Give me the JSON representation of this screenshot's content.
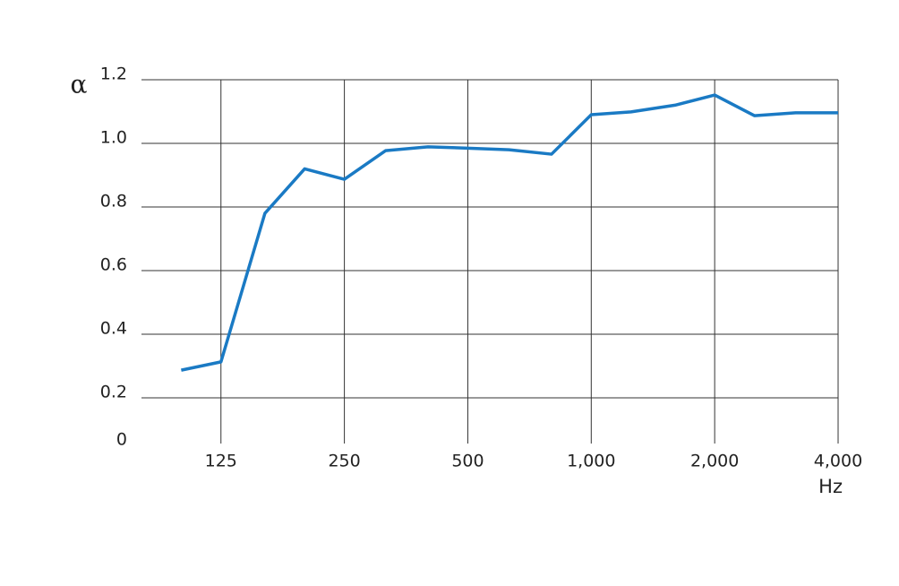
{
  "chart_data": {
    "type": "line",
    "ylabel": "α",
    "xlabel": "Hz",
    "x": [
      100,
      125,
      160,
      200,
      250,
      315,
      400,
      500,
      630,
      800,
      1000,
      1250,
      1600,
      2000,
      2500,
      3150,
      4000
    ],
    "series": [
      {
        "color": "#1a7ac4",
        "values": [
          0.287,
          0.313,
          0.78,
          0.92,
          0.887,
          0.977,
          0.989,
          0.985,
          0.98,
          0.966,
          1.09,
          1.099,
          1.12,
          1.152,
          1.087,
          1.096,
          1.096
        ]
      }
    ],
    "xscale": "log",
    "xlim": [
      80,
      4000
    ],
    "xticks": [
      125,
      250,
      500,
      {
        "value": 1000,
        "label": "1,000"
      },
      {
        "value": 2000,
        "label": "2,000"
      },
      {
        "value": 4000,
        "label": "4,000"
      }
    ],
    "ylim": [
      0,
      1.2
    ],
    "yticks": [
      0,
      0.2,
      0.4,
      0.6,
      0.8,
      {
        "value": 1.0,
        "label": "1.0"
      },
      1.2
    ],
    "grid": true
  }
}
